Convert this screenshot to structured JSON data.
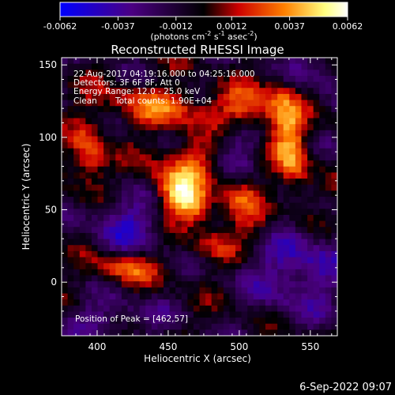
{
  "colorbar": {
    "ticks": [
      "-0.0062",
      "-0.0037",
      "-0.0012",
      "0.0012",
      "0.0037",
      "0.0062"
    ],
    "range": [
      -0.0062,
      0.0062
    ],
    "unit_prefix": "(photons cm",
    "unit_sup1": "-2",
    "unit_mid": " s",
    "unit_sup2": "-1",
    "unit_mid2": " asec",
    "unit_sup3": "-2",
    "unit_suffix": ")"
  },
  "chart_data": {
    "type": "heatmap",
    "title": "Reconstructed RHESSI Image",
    "xlabel": "Heliocentric X (arcsec)",
    "ylabel": "Heliocentric Y (arcsec)",
    "xlim": [
      375,
      569
    ],
    "ylim": [
      -37,
      155
    ],
    "xticks": [
      400,
      450,
      500,
      550
    ],
    "yticks": [
      0,
      50,
      100,
      150
    ],
    "xtick_labels": [
      "400",
      "450",
      "500",
      "550"
    ],
    "ytick_labels": [
      "0",
      "50",
      "100",
      "150"
    ],
    "colormap": [
      "#0000ff",
      "#4b0082",
      "#000000",
      "#cc0000",
      "#ff8000",
      "#ffff80",
      "#ffffff"
    ],
    "sources": [
      {
        "x": 462,
        "y": 57,
        "amp": 1.0,
        "sx": 14,
        "sy": 9,
        "rot": -35
      },
      {
        "x": 468,
        "y": 85,
        "amp": 0.55,
        "sx": 22,
        "sy": 12,
        "rot": 30
      },
      {
        "x": 450,
        "y": 120,
        "amp": 0.5,
        "sx": 35,
        "sy": 10,
        "rot": -5
      },
      {
        "x": 535,
        "y": 100,
        "amp": 0.7,
        "sx": 9,
        "sy": 30,
        "rot": 10
      },
      {
        "x": 505,
        "y": 120,
        "amp": 0.55,
        "sx": 14,
        "sy": 10,
        "rot": 0
      },
      {
        "x": 395,
        "y": 85,
        "amp": 0.6,
        "sx": 9,
        "sy": 16,
        "rot": 0
      },
      {
        "x": 420,
        "y": 10,
        "amp": 0.6,
        "sx": 15,
        "sy": 8,
        "rot": 0
      },
      {
        "x": 500,
        "y": 55,
        "amp": 0.45,
        "sx": 10,
        "sy": 12,
        "rot": 0
      },
      {
        "x": 515,
        "y": 35,
        "amp": 0.3,
        "sx": 10,
        "sy": 10,
        "rot": 0
      },
      {
        "x": 480,
        "y": 25,
        "amp": 0.3,
        "sx": 12,
        "sy": 8,
        "rot": 0
      }
    ],
    "negatives": [
      {
        "x": 492,
        "y": 100,
        "amp": -0.55,
        "sx": 14,
        "sy": 14
      },
      {
        "x": 420,
        "y": 40,
        "amp": -0.5,
        "sx": 18,
        "sy": 16
      },
      {
        "x": 540,
        "y": 10,
        "amp": -0.55,
        "sx": 22,
        "sy": 22
      },
      {
        "x": 410,
        "y": -25,
        "amp": -0.35,
        "sx": 25,
        "sy": 10
      },
      {
        "x": 550,
        "y": 150,
        "amp": -0.35,
        "sx": 18,
        "sy": 12
      }
    ]
  },
  "info": {
    "line1": "22-Aug-2017 04:19:16.000 to 04:25:16.000",
    "line2": "Detectors: 3F 6F 8F, Att 0",
    "line3": "Energy Range: 12.0 - 25.0 keV",
    "line4_a": "Clean",
    "line4_b": "Total counts: 1.90E+04",
    "peak": "Position of Peak = [462,57]"
  },
  "footer": {
    "date": "6-Sep-2022 09:07"
  }
}
